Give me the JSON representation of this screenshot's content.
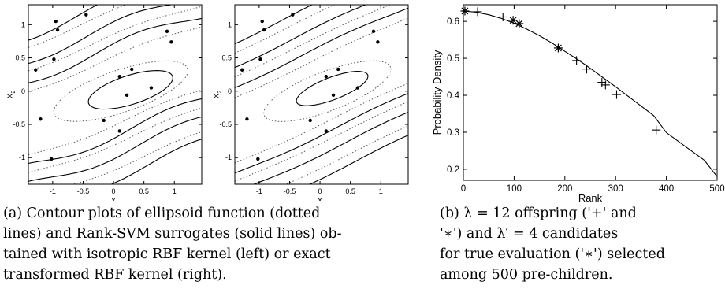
{
  "chart_data": [
    {
      "type": "contour",
      "xlabel": "X_1",
      "ylabel": "X_2",
      "xlim": [
        -1.4,
        1.45
      ],
      "ylim": [
        -1.4,
        1.3
      ],
      "x_ticks": [
        -1,
        -0.5,
        0,
        0.5,
        1
      ],
      "y_ticks": [
        -1,
        -0.5,
        0,
        0.5,
        1
      ],
      "x_tick_labels": [
        "-1",
        "-0.5",
        "0",
        "0.5",
        "1"
      ],
      "y_tick_labels": [
        "-1",
        "-0.5",
        "0",
        "0.5",
        "1"
      ],
      "dotted_series": "ellipsoid function",
      "solid_series": "Rank-SVM surrogate (isotropic RBF kernel)",
      "points": [
        [
          -0.95,
          1.05
        ],
        [
          -0.45,
          1.15
        ],
        [
          -0.92,
          0.92
        ],
        [
          0.88,
          0.9
        ],
        [
          0.95,
          0.74
        ],
        [
          -0.98,
          0.48
        ],
        [
          -1.28,
          0.32
        ],
        [
          0.3,
          0.33
        ],
        [
          0.1,
          0.22
        ],
        [
          0.62,
          0.05
        ],
        [
          0.22,
          -0.06
        ],
        [
          -1.2,
          -0.42
        ],
        [
          -0.16,
          -0.44
        ],
        [
          0.1,
          -0.6
        ],
        [
          -1.02,
          -1.02
        ]
      ]
    },
    {
      "type": "contour",
      "xlabel": "X_1",
      "ylabel": "X_2",
      "xlim": [
        -1.4,
        1.45
      ],
      "ylim": [
        -1.4,
        1.3
      ],
      "x_ticks": [
        -1,
        -0.5,
        0,
        0.5,
        1
      ],
      "y_ticks": [
        -1,
        -0.5,
        0,
        0.5,
        1
      ],
      "x_tick_labels": [
        "-1",
        "-0.5",
        "0",
        "0.5",
        "1"
      ],
      "y_tick_labels": [
        "-1",
        "-0.5",
        "0",
        "0.5",
        "1"
      ],
      "dotted_series": "ellipsoid function",
      "solid_series": "Rank-SVM surrogate (exact transformed RBF kernel)",
      "points": [
        [
          -0.95,
          1.05
        ],
        [
          -0.45,
          1.15
        ],
        [
          -0.92,
          0.92
        ],
        [
          0.88,
          0.9
        ],
        [
          0.95,
          0.74
        ],
        [
          -0.98,
          0.48
        ],
        [
          -1.28,
          0.32
        ],
        [
          0.3,
          0.33
        ],
        [
          0.1,
          0.22
        ],
        [
          0.62,
          0.05
        ],
        [
          0.22,
          -0.06
        ],
        [
          -1.2,
          -0.42
        ],
        [
          -0.16,
          -0.44
        ],
        [
          0.1,
          -0.6
        ],
        [
          -1.02,
          -1.02
        ]
      ]
    },
    {
      "type": "line",
      "title": "",
      "xlabel": "Rank",
      "ylabel": "Probability Density",
      "xlim": [
        0,
        500
      ],
      "ylim": [
        0.17,
        0.645
      ],
      "x_ticks": [
        0,
        100,
        200,
        300,
        400,
        500
      ],
      "y_ticks": [
        0.2,
        0.3,
        0.4,
        0.5,
        0.6
      ],
      "x_tick_labels": [
        "0",
        "100",
        "200",
        "300",
        "400",
        "500"
      ],
      "y_tick_labels": [
        "0.2",
        "0.3",
        "0.4",
        "0.5",
        "0.6"
      ],
      "curve": {
        "x": [
          0,
          25,
          50,
          75,
          100,
          125,
          150,
          175,
          200,
          225,
          250,
          275,
          300,
          325,
          350,
          375,
          400,
          425,
          450,
          475,
          500
        ],
        "y": [
          0.628,
          0.625,
          0.618,
          0.608,
          0.595,
          0.579,
          0.561,
          0.541,
          0.519,
          0.497,
          0.473,
          0.448,
          0.423,
          0.397,
          0.371,
          0.345,
          0.299,
          0.274,
          0.249,
          0.224,
          0.18
        ]
      },
      "offspring_plus": [
        [
          28,
          0.626
        ],
        [
          78,
          0.612
        ],
        [
          223,
          0.494
        ],
        [
          243,
          0.471
        ],
        [
          273,
          0.435
        ],
        [
          280,
          0.428
        ],
        [
          302,
          0.402
        ],
        [
          380,
          0.306
        ]
      ],
      "candidates_star": [
        [
          3,
          0.628
        ],
        [
          98,
          0.603
        ],
        [
          110,
          0.594
        ],
        [
          187,
          0.528
        ]
      ]
    }
  ],
  "captions": {
    "a": [
      "(a) Contour plots of ellipsoid function (dotted",
      "lines) and Rank-SVM surrogates (solid lines) ob-",
      "tained with isotropic RBF kernel (left) or exact",
      "transformed RBF kernel (right)."
    ],
    "b": [
      "(b) λ = 12 offspring ('+' and",
      "'∗') and λ′ = 4 candidates",
      "for true evaluation ('∗') selected",
      "among 500 pre-children."
    ]
  }
}
